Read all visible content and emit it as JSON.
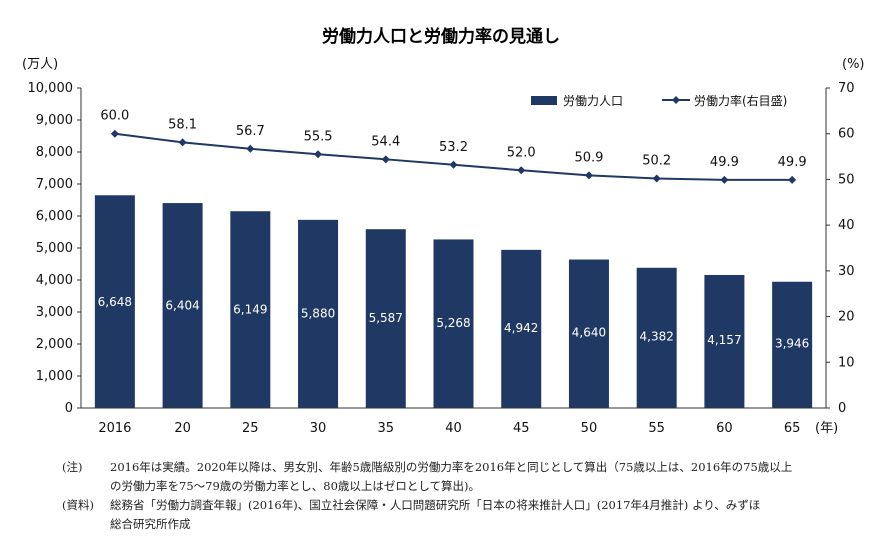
{
  "chart_data": {
    "type": "bar+line",
    "title": "労働力人口と労働力率の見通し",
    "categories": [
      "2016",
      "20",
      "25",
      "30",
      "35",
      "40",
      "45",
      "50",
      "55",
      "60",
      "65"
    ],
    "x_unit": "(年)",
    "y_left_unit": "(万人)",
    "y_right_unit": "(%)",
    "y_left_ticks": [
      "10,000",
      "9,000",
      "8,000",
      "7,000",
      "6,000",
      "5,000",
      "4,000",
      "3,000",
      "2,000",
      "1,000",
      "0"
    ],
    "y_right_ticks": [
      "70",
      "60",
      "50",
      "40",
      "30",
      "20",
      "10",
      "0"
    ],
    "ylim_left": [
      0,
      10000
    ],
    "ylim_right": [
      0,
      70
    ],
    "series": [
      {
        "name": "労働力人口",
        "type": "bar",
        "axis": "left",
        "values": [
          6648,
          6404,
          6149,
          5880,
          5587,
          5268,
          4942,
          4640,
          4382,
          4157,
          3946
        ],
        "labels": [
          "6,648",
          "6,404",
          "6,149",
          "5,880",
          "5,587",
          "5,268",
          "4,942",
          "4,640",
          "4,382",
          "4,157",
          "3,946"
        ],
        "color": "#1f3864"
      },
      {
        "name": "労働力率(右目盛)",
        "type": "line",
        "axis": "right",
        "values": [
          60.0,
          58.1,
          56.7,
          55.5,
          54.4,
          53.2,
          52.0,
          50.9,
          50.2,
          49.9,
          49.9
        ],
        "labels": [
          "60.0",
          "58.1",
          "56.7",
          "55.5",
          "54.4",
          "53.2",
          "52.0",
          "50.9",
          "50.2",
          "49.9",
          "49.9"
        ],
        "color": "#1f3864"
      }
    ],
    "legend": "top-right"
  },
  "notes": [
    {
      "head": "(注)",
      "lines": [
        "2016年は実績。2020年以降は、男女別、年齢5歳階級別の労働力率を2016年と同じとして算出（75歳以上は、2016年の75歳以上",
        "の労働力率を75～79歳の労働力率とし、80歳以上はゼロとして算出)。"
      ]
    },
    {
      "head": "(資料)",
      "lines": [
        "総務省「労働力調査年報」(2016年)、国立社会保障・人口問題研究所「日本の将来推計人口」(2017年4月推計) より、みずほ",
        "総合研究所作成"
      ]
    }
  ]
}
